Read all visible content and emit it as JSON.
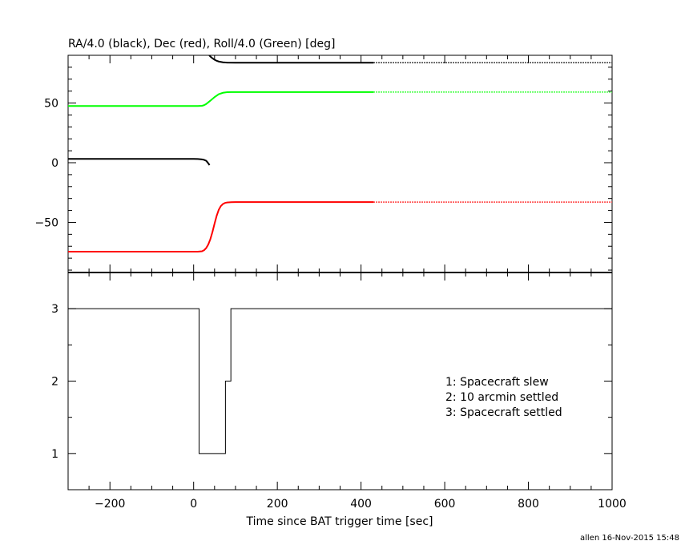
{
  "colors": {
    "ra": "#000000",
    "dec": "#ff0000",
    "roll": "#00ff00",
    "axis": "#000000"
  },
  "chart_data": [
    {
      "type": "line",
      "title": "RA/4.0 (black), Dec (red), Roll/4.0 (Green) [deg]",
      "xlabel": "",
      "ylabel": "",
      "xlim": [
        -300,
        1000
      ],
      "ylim": [
        -92,
        90
      ],
      "yticks": [
        -50,
        0,
        50
      ],
      "ytick_labels": [
        "−50",
        "0",
        "50"
      ],
      "grid": false,
      "series": [
        {
          "color": "#000000",
          "style": "solid",
          "x": [
            -300,
            0,
            10,
            20,
            25,
            30,
            33,
            36,
            38
          ],
          "y": [
            3.2,
            3.2,
            3.1,
            2.8,
            2.4,
            1.6,
            0.4,
            -1.0,
            -2.0
          ]
        },
        {
          "color": "#000000",
          "style": "solid",
          "x": [
            35,
            40,
            45,
            50,
            55,
            60,
            70,
            80,
            100,
            150,
            430
          ],
          "y": [
            91,
            89,
            87.5,
            86.3,
            85.4,
            84.8,
            84.1,
            83.9,
            83.8,
            83.8,
            83.8
          ]
        },
        {
          "color": "#000000",
          "style": "dotted",
          "x": [
            430,
            1000
          ],
          "y": [
            83.8,
            83.8
          ]
        },
        {
          "color": "#00ff00",
          "style": "solid",
          "x": [
            -300,
            0,
            10,
            20,
            25,
            30,
            40,
            50,
            60,
            70,
            80,
            90,
            100,
            430
          ],
          "y": [
            47.5,
            47.5,
            47.5,
            47.7,
            48.2,
            49.2,
            52.0,
            55.0,
            57.4,
            58.6,
            59.1,
            59.2,
            59.2,
            59.2
          ]
        },
        {
          "color": "#00ff00",
          "style": "dotted",
          "x": [
            430,
            1000
          ],
          "y": [
            59.2,
            59.2
          ]
        },
        {
          "color": "#ff0000",
          "style": "solid",
          "x": [
            -300,
            0,
            10,
            20,
            25,
            30,
            35,
            40,
            45,
            50,
            55,
            60,
            65,
            70,
            75,
            80,
            90,
            100,
            430
          ],
          "y": [
            -74.5,
            -74.5,
            -74.5,
            -74.2,
            -73.3,
            -71.5,
            -68.5,
            -64.0,
            -58.0,
            -51.0,
            -44.5,
            -39.5,
            -36.3,
            -34.6,
            -33.7,
            -33.3,
            -33.1,
            -33.0,
            -33.0
          ]
        },
        {
          "color": "#ff0000",
          "style": "dotted",
          "x": [
            430,
            1000
          ],
          "y": [
            -33.0,
            -33.0
          ]
        }
      ]
    },
    {
      "type": "line",
      "title": "",
      "xlabel": "Time since BAT trigger time [sec]",
      "ylabel": "",
      "xlim": [
        -300,
        1000
      ],
      "ylim": [
        0.5,
        3.5
      ],
      "xticks": [
        -200,
        0,
        200,
        400,
        600,
        800,
        1000
      ],
      "xtick_labels": [
        "−200",
        "0",
        "200",
        "400",
        "600",
        "800",
        "1000"
      ],
      "yticks": [
        1,
        2,
        3
      ],
      "ytick_labels": [
        "1",
        "2",
        "3"
      ],
      "grid": false,
      "series": [
        {
          "color": "#000000",
          "style": "step",
          "x": [
            -300,
            13,
            13,
            76,
            76,
            89,
            89,
            1000
          ],
          "y": [
            3,
            3,
            1,
            1,
            2,
            2,
            3,
            3
          ]
        }
      ],
      "legend_lines": [
        "1: Spacecraft slew",
        "2: 10 arcmin settled",
        "3: Spacecraft settled"
      ],
      "legend_placement": "right"
    }
  ],
  "footer": "allen 16-Nov-2015 15:48"
}
